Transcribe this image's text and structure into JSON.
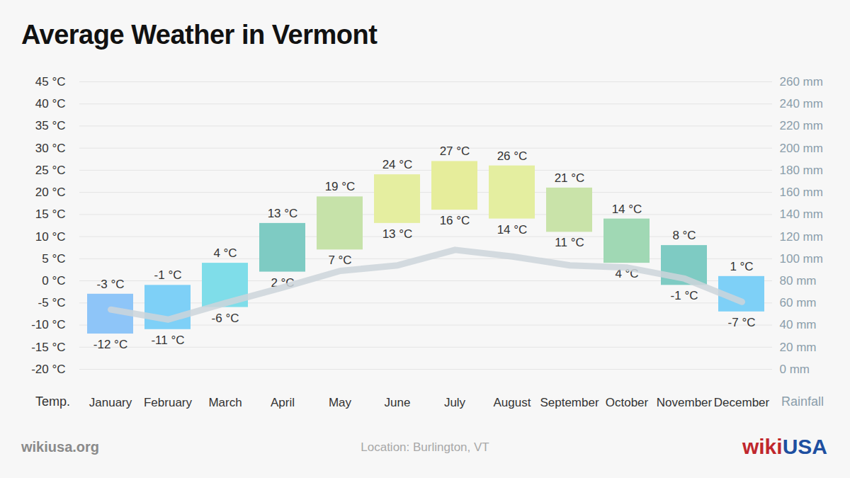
{
  "chart_data": {
    "type": "bar",
    "title": "Average Weather in Vermont",
    "categories": [
      "January",
      "February",
      "March",
      "April",
      "May",
      "June",
      "July",
      "August",
      "September",
      "October",
      "November",
      "December"
    ],
    "y_label": "Temp.",
    "y2_label": "Rainfall",
    "ylim": [
      -20,
      45
    ],
    "yticks": [
      {
        "value": -20,
        "label": "-20 °C"
      },
      {
        "value": -15,
        "label": "-15 °C"
      },
      {
        "value": -10,
        "label": "-10 °C"
      },
      {
        "value": -5,
        "label": "-5 °C"
      },
      {
        "value": 0,
        "label": "0 °C"
      },
      {
        "value": 5,
        "label": "5 °C"
      },
      {
        "value": 10,
        "label": "10 °C"
      },
      {
        "value": 15,
        "label": "15 °C"
      },
      {
        "value": 20,
        "label": "20 °C"
      },
      {
        "value": 25,
        "label": "25 °C"
      },
      {
        "value": 30,
        "label": "30 °C"
      },
      {
        "value": 35,
        "label": "35 °C"
      },
      {
        "value": 40,
        "label": "40 °C"
      },
      {
        "value": 45,
        "label": "45 °C"
      }
    ],
    "y2lim": [
      0,
      260
    ],
    "y2ticks": [
      {
        "value": 0,
        "label": "0 mm"
      },
      {
        "value": 20,
        "label": "20 mm"
      },
      {
        "value": 40,
        "label": "40 mm"
      },
      {
        "value": 60,
        "label": "60 mm"
      },
      {
        "value": 80,
        "label": "80 mm"
      },
      {
        "value": 100,
        "label": "100 mm"
      },
      {
        "value": 120,
        "label": "120 mm"
      },
      {
        "value": 140,
        "label": "140 mm"
      },
      {
        "value": 160,
        "label": "160 mm"
      },
      {
        "value": 180,
        "label": "180 mm"
      },
      {
        "value": 200,
        "label": "200 mm"
      },
      {
        "value": 220,
        "label": "220 mm"
      },
      {
        "value": 240,
        "label": "240 mm"
      },
      {
        "value": 260,
        "label": "260 mm"
      }
    ],
    "grid": true,
    "data_labels": true,
    "series": [
      {
        "type": "bar",
        "values": [
          -3,
          -1,
          4,
          13,
          19,
          24,
          27,
          26,
          21,
          14,
          8,
          1
        ],
        "value_labels": [
          "-3 °C",
          "-1 °C",
          "4 °C",
          "13 °C",
          "19 °C",
          "24 °C",
          "27 °C",
          "26 °C",
          "21 °C",
          "14 °C",
          "8 °C",
          "1 °C"
        ],
        "low": [
          -12,
          -11,
          -6,
          2,
          7,
          13,
          16,
          14,
          11,
          4,
          -1,
          -7
        ],
        "low_labels": [
          "-12 °C",
          "-11 °C",
          "-6 °C",
          "2 °C",
          "7 °C",
          "13 °C",
          "16 °C",
          "14 °C",
          "11 °C",
          "4 °C",
          "-1 °C",
          "-7 °C"
        ],
        "colors": [
          "#8ec5f8",
          "#7ed0f7",
          "#7fdde9",
          "#7ecbc3",
          "#c6e2a9",
          "#e5eea0",
          "#e6ed9b",
          "#e4eea0",
          "#c9e3a9",
          "#a0d8b4",
          "#7ecbc3",
          "#7ed0f7"
        ]
      },
      {
        "type": "line",
        "axis": "y2",
        "values": [
          54,
          45,
          60,
          74,
          89,
          94,
          108,
          102,
          94,
          92,
          82,
          61
        ],
        "color": "#cdd5da"
      }
    ],
    "source": "wikiusa.org",
    "caption": "Location: Burlington, VT",
    "logo": [
      "wiki",
      "USA"
    ]
  }
}
